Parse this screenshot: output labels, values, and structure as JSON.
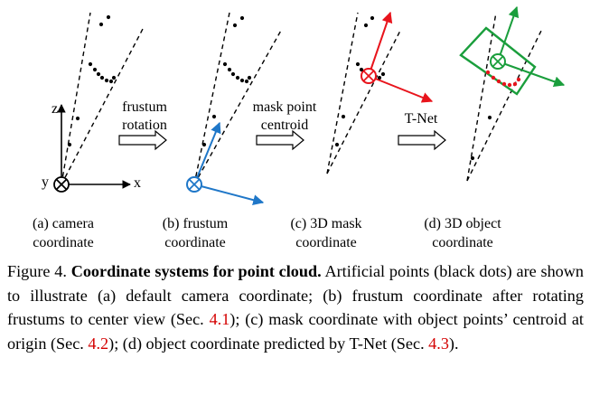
{
  "panels": [
    {
      "label_line1": "(a) camera",
      "label_line2": "coordinate"
    },
    {
      "label_line1": "(b) frustum",
      "label_line2": "coordinate"
    },
    {
      "label_line1": "(c) 3D mask",
      "label_line2": "coordinate"
    },
    {
      "label_line1": "(d) 3D object",
      "label_line2": "coordinate"
    }
  ],
  "steps": [
    {
      "line1": "frustum",
      "line2": "rotation"
    },
    {
      "line1": "mask point",
      "line2": "centroid"
    },
    {
      "line1": "T-Net",
      "line2": ""
    }
  ],
  "axes": {
    "z": "z",
    "y": "y",
    "x": "x"
  },
  "caption": {
    "prefix": "Figure 4. ",
    "bold": "Coordinate systems for point cloud.",
    "t1": " Artificial points (black dots) are shown to illustrate (a) default camera coordinate; (b) frustum coordinate after rotating frustums to center view (Sec. ",
    "r1": "4.1",
    "t2": "); (c) mask coordinate with object points’ centroid at origin (Sec. ",
    "r2": "4.2",
    "t3": "); (d) object coordinate predicted by T-Net (Sec. ",
    "r3": "4.3",
    "t4": ")."
  },
  "colors": {
    "frustum_axes": "#1f77c8",
    "mask_axes": "#e8141c",
    "object_axes": "#1a9e3c",
    "object_points": "#e8141c"
  }
}
